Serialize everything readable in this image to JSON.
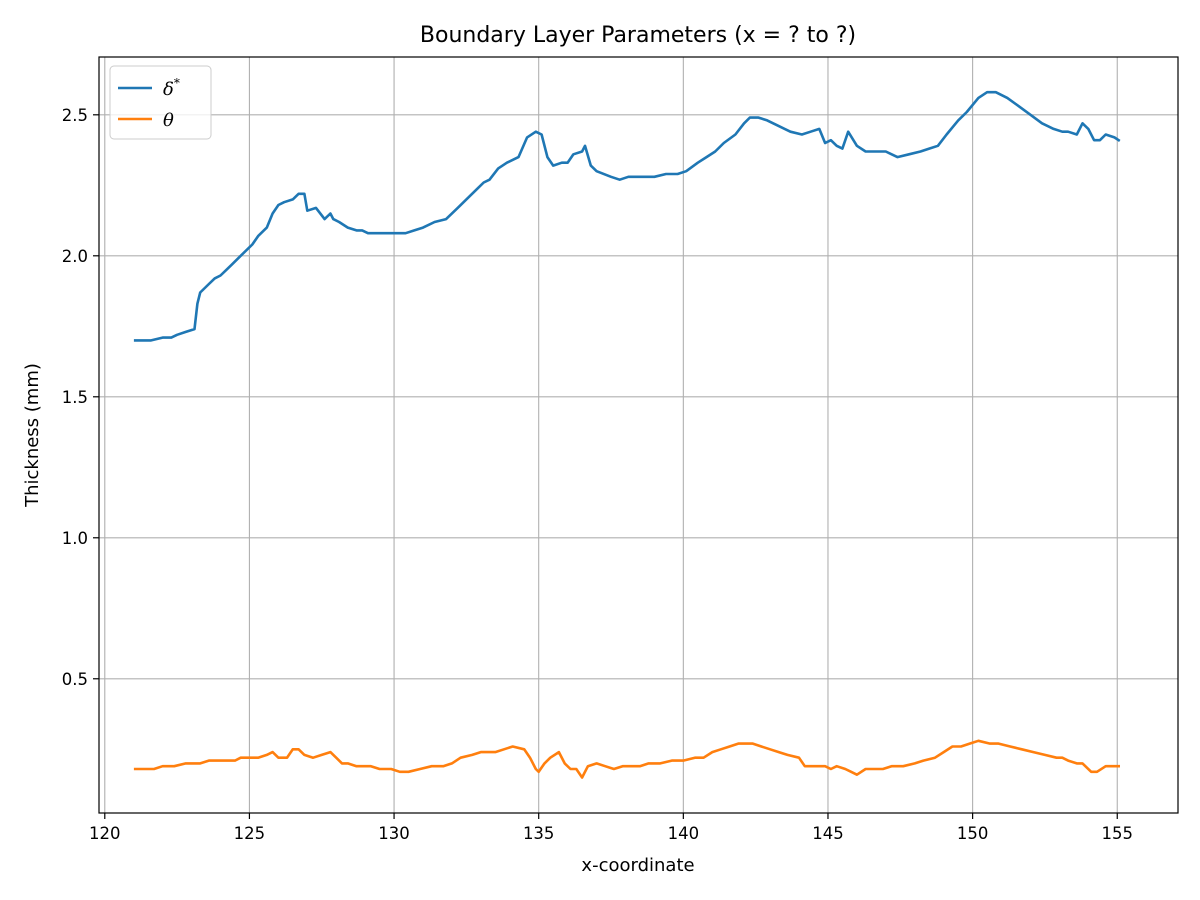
{
  "chart_data": {
    "type": "line",
    "title": "Boundary Layer Parameters (x = ? to ?)",
    "xlabel": "x-coordinate",
    "ylabel": "Thickness (mm)",
    "xlim": [
      119.8,
      157.1
    ],
    "ylim": [
      0.024,
      2.705
    ],
    "xticks": [
      120,
      125,
      130,
      135,
      140,
      145,
      150,
      155
    ],
    "yticks": [
      0.5,
      1.0,
      1.5,
      2.0,
      2.5
    ],
    "grid": true,
    "legend": {
      "placement": "top-left"
    },
    "series": [
      {
        "name": "δ*",
        "label_base": "δ",
        "label_sup": "*",
        "color": "#1f77b4",
        "x": [
          121.05,
          121.3,
          121.6,
          122.0,
          122.3,
          122.5,
          122.8,
          123.1,
          123.2,
          123.3,
          123.6,
          123.8,
          124.0,
          124.2,
          124.4,
          124.5,
          124.7,
          125.0,
          125.1,
          125.3,
          125.6,
          125.8,
          126.0,
          126.2,
          126.5,
          126.7,
          126.9,
          127.0,
          127.3,
          127.6,
          127.8,
          127.9,
          128.1,
          128.4,
          128.7,
          128.9,
          129.1,
          129.4,
          129.7,
          130.0,
          130.4,
          130.7,
          131.0,
          131.4,
          131.8,
          132.2,
          132.6,
          132.9,
          133.1,
          133.3,
          133.6,
          133.9,
          134.3,
          134.6,
          134.9,
          135.1,
          135.3,
          135.5,
          135.8,
          136.0,
          136.2,
          136.5,
          136.6,
          136.8,
          137.0,
          137.5,
          137.8,
          138.1,
          138.4,
          138.7,
          139.0,
          139.4,
          139.8,
          140.1,
          140.5,
          140.8,
          141.1,
          141.4,
          141.8,
          142.1,
          142.3,
          142.6,
          142.9,
          143.3,
          143.7,
          144.1,
          144.4,
          144.7,
          144.9,
          145.1,
          145.3,
          145.5,
          145.7,
          146.0,
          146.3,
          146.7,
          147.0,
          147.4,
          147.8,
          148.2,
          148.5,
          148.8,
          149.1,
          149.5,
          149.8,
          150.2,
          150.5,
          150.8,
          151.2,
          151.6,
          152.0,
          152.4,
          152.8,
          153.1,
          153.3,
          153.6,
          153.8,
          154.0,
          154.2,
          154.4,
          154.6,
          154.9,
          155.05
        ],
        "values": [
          1.7,
          1.7,
          1.7,
          1.71,
          1.71,
          1.72,
          1.73,
          1.74,
          1.83,
          1.87,
          1.9,
          1.92,
          1.93,
          1.95,
          1.97,
          1.98,
          2.0,
          2.03,
          2.04,
          2.07,
          2.1,
          2.15,
          2.18,
          2.19,
          2.2,
          2.22,
          2.22,
          2.16,
          2.17,
          2.13,
          2.15,
          2.13,
          2.12,
          2.1,
          2.09,
          2.09,
          2.08,
          2.08,
          2.08,
          2.08,
          2.08,
          2.09,
          2.1,
          2.12,
          2.13,
          2.17,
          2.21,
          2.24,
          2.26,
          2.27,
          2.31,
          2.33,
          2.35,
          2.42,
          2.44,
          2.43,
          2.35,
          2.32,
          2.33,
          2.33,
          2.36,
          2.37,
          2.39,
          2.32,
          2.3,
          2.28,
          2.27,
          2.28,
          2.28,
          2.28,
          2.28,
          2.29,
          2.29,
          2.3,
          2.33,
          2.35,
          2.37,
          2.4,
          2.43,
          2.47,
          2.49,
          2.49,
          2.48,
          2.46,
          2.44,
          2.43,
          2.44,
          2.45,
          2.4,
          2.41,
          2.39,
          2.38,
          2.44,
          2.39,
          2.37,
          2.37,
          2.37,
          2.35,
          2.36,
          2.37,
          2.38,
          2.39,
          2.43,
          2.48,
          2.51,
          2.56,
          2.58,
          2.58,
          2.56,
          2.53,
          2.5,
          2.47,
          2.45,
          2.44,
          2.44,
          2.43,
          2.47,
          2.45,
          2.41,
          2.41,
          2.43,
          2.42,
          2.41
        ]
      },
      {
        "name": "θ",
        "label_base": "θ",
        "label_sup": "",
        "color": "#ff7f0e",
        "x": [
          121.05,
          121.3,
          121.7,
          122.0,
          122.4,
          122.8,
          123.0,
          123.3,
          123.6,
          123.9,
          124.2,
          124.5,
          124.7,
          125.0,
          125.3,
          125.6,
          125.8,
          126.0,
          126.3,
          126.5,
          126.7,
          126.9,
          127.2,
          127.5,
          127.8,
          128.0,
          128.2,
          128.4,
          128.7,
          128.9,
          129.2,
          129.5,
          129.9,
          130.2,
          130.5,
          130.9,
          131.3,
          131.7,
          132.0,
          132.3,
          132.7,
          133.0,
          133.2,
          133.5,
          133.8,
          134.1,
          134.5,
          134.7,
          134.9,
          135.0,
          135.2,
          135.4,
          135.7,
          135.9,
          136.1,
          136.3,
          136.5,
          136.7,
          137.0,
          137.3,
          137.6,
          137.9,
          138.2,
          138.5,
          138.8,
          139.2,
          139.6,
          140.0,
          140.4,
          140.7,
          141.0,
          141.3,
          141.6,
          141.9,
          142.1,
          142.4,
          142.7,
          143.0,
          143.3,
          143.6,
          144.0,
          144.2,
          144.4,
          144.7,
          144.9,
          145.1,
          145.3,
          145.6,
          145.8,
          146.0,
          146.3,
          146.6,
          146.9,
          147.2,
          147.6,
          148.0,
          148.3,
          148.7,
          149.0,
          149.3,
          149.6,
          149.9,
          150.2,
          150.6,
          150.9,
          151.3,
          151.7,
          152.1,
          152.5,
          152.9,
          153.1,
          153.3,
          153.6,
          153.8,
          154.1,
          154.3,
          154.6,
          154.8,
          155.05
        ],
        "values": [
          0.18,
          0.18,
          0.18,
          0.19,
          0.19,
          0.2,
          0.2,
          0.2,
          0.21,
          0.21,
          0.21,
          0.21,
          0.22,
          0.22,
          0.22,
          0.23,
          0.24,
          0.22,
          0.22,
          0.25,
          0.25,
          0.23,
          0.22,
          0.23,
          0.24,
          0.22,
          0.2,
          0.2,
          0.19,
          0.19,
          0.19,
          0.18,
          0.18,
          0.17,
          0.17,
          0.18,
          0.19,
          0.19,
          0.2,
          0.22,
          0.23,
          0.24,
          0.24,
          0.24,
          0.25,
          0.26,
          0.25,
          0.22,
          0.18,
          0.17,
          0.2,
          0.22,
          0.24,
          0.2,
          0.18,
          0.18,
          0.15,
          0.19,
          0.2,
          0.19,
          0.18,
          0.19,
          0.19,
          0.19,
          0.2,
          0.2,
          0.21,
          0.21,
          0.22,
          0.22,
          0.24,
          0.25,
          0.26,
          0.27,
          0.27,
          0.27,
          0.26,
          0.25,
          0.24,
          0.23,
          0.22,
          0.19,
          0.19,
          0.19,
          0.19,
          0.18,
          0.19,
          0.18,
          0.17,
          0.16,
          0.18,
          0.18,
          0.18,
          0.19,
          0.19,
          0.2,
          0.21,
          0.22,
          0.24,
          0.26,
          0.26,
          0.27,
          0.28,
          0.27,
          0.27,
          0.26,
          0.25,
          0.24,
          0.23,
          0.22,
          0.22,
          0.21,
          0.2,
          0.2,
          0.17,
          0.17,
          0.19,
          0.19,
          0.19
        ]
      }
    ]
  }
}
